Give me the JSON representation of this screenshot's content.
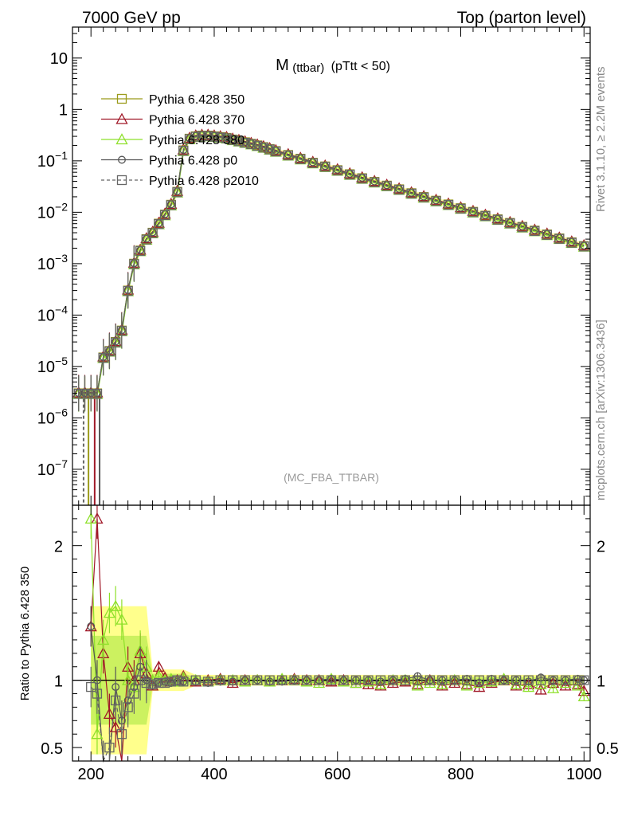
{
  "header": {
    "left": "7000 GeV pp",
    "right": "Top (parton level)"
  },
  "side_labels": {
    "rivet": "Rivet 3.1.10, ≥ 2.2M events",
    "mcplots": "mcplots.cern.ch [arXiv:1306.3436]"
  },
  "colors": {
    "p350": "#9a9a1a",
    "p370": "#a01828",
    "p380": "#8ee02a",
    "p0": "#555555",
    "p2010": "#666666",
    "band_yellow": "#ffff66",
    "band_green": "#8ee02a"
  },
  "chart_data": [
    {
      "type": "line",
      "title_main": "M",
      "title_sub": "(ttbar)",
      "title_cond": "(pTtt < 50)",
      "watermark": "(MC_FBA_TTBAR)",
      "yscale": "log",
      "xlim": [
        170,
        1010
      ],
      "ylim": [
        2e-08,
        40
      ],
      "y_ticks": [
        {
          "v": 1e-07,
          "t": "10",
          "e": "−7"
        },
        {
          "v": 1e-06,
          "t": "10",
          "e": "−6"
        },
        {
          "v": 1e-05,
          "t": "10",
          "e": "−5"
        },
        {
          "v": 0.0001,
          "t": "10",
          "e": "−4"
        },
        {
          "v": 0.001,
          "t": "10",
          "e": "−3"
        },
        {
          "v": 0.01,
          "t": "10",
          "e": "−2"
        },
        {
          "v": 0.1,
          "t": "10",
          "e": "−1"
        },
        {
          "v": 1,
          "t": "1",
          "e": ""
        },
        {
          "v": 10,
          "t": "10",
          "e": ""
        }
      ],
      "legend_position": "top-left",
      "series": [
        {
          "name": "Pythia 6.428 350",
          "marker": "square",
          "color_key": "p350",
          "dashed": false
        },
        {
          "name": "Pythia 6.428 370",
          "marker": "triangle",
          "color_key": "p370",
          "dashed": false
        },
        {
          "name": "Pythia 6.428 380",
          "marker": "triangle",
          "color_key": "p380",
          "dashed": false
        },
        {
          "name": "Pythia 6.428 p0",
          "marker": "circle",
          "color_key": "p0",
          "dashed": false
        },
        {
          "name": "Pythia 6.428 p2010",
          "marker": "square",
          "color_key": "p2010",
          "dashed": true
        }
      ],
      "reference": {
        "x": [
          180,
          190,
          200,
          210,
          220,
          230,
          240,
          250,
          260,
          270,
          280,
          290,
          300,
          310,
          320,
          330,
          340,
          350,
          360,
          370,
          380,
          390,
          400,
          410,
          420,
          430,
          440,
          450,
          460,
          470,
          480,
          490,
          500,
          520,
          540,
          560,
          580,
          600,
          620,
          640,
          660,
          680,
          700,
          720,
          740,
          760,
          780,
          800,
          820,
          840,
          860,
          880,
          900,
          920,
          940,
          960,
          980,
          1000
        ],
        "y": [
          3e-06,
          3e-06,
          3e-06,
          3e-06,
          1.5e-05,
          2e-05,
          3e-05,
          5e-05,
          0.0003,
          0.001,
          0.0018,
          0.003,
          0.004,
          0.006,
          0.009,
          0.014,
          0.025,
          0.16,
          0.27,
          0.3,
          0.31,
          0.31,
          0.3,
          0.29,
          0.28,
          0.26,
          0.245,
          0.23,
          0.215,
          0.2,
          0.185,
          0.17,
          0.155,
          0.13,
          0.11,
          0.092,
          0.078,
          0.066,
          0.055,
          0.046,
          0.039,
          0.033,
          0.028,
          0.0235,
          0.0198,
          0.0168,
          0.0142,
          0.012,
          0.0102,
          0.0086,
          0.0073,
          0.0062,
          0.0052,
          0.0044,
          0.0037,
          0.0031,
          0.0026,
          0.0022
        ]
      }
    },
    {
      "type": "line",
      "ylabel": "Ratio to Pythia 6.428 350",
      "xlim": [
        170,
        1010
      ],
      "ylim": [
        0.4,
        2.3
      ],
      "x_ticks": [
        200,
        400,
        600,
        800,
        1000
      ],
      "y_ticks": [
        0.5,
        1,
        2
      ],
      "x": [
        200,
        210,
        220,
        230,
        240,
        250,
        260,
        270,
        280,
        290,
        300,
        310,
        320,
        330,
        340,
        350,
        370,
        390,
        410,
        430,
        450,
        470,
        490,
        510,
        530,
        550,
        570,
        590,
        610,
        630,
        650,
        670,
        690,
        710,
        730,
        750,
        770,
        790,
        810,
        830,
        850,
        870,
        890,
        910,
        930,
        950,
        970,
        990,
        1000
      ],
      "series": [
        {
          "name": "Pythia 6.428 350",
          "values": [
            1,
            1,
            1,
            1,
            1,
            1,
            1,
            1,
            1,
            1,
            1,
            1,
            1,
            1,
            1,
            1,
            1,
            1,
            1,
            1,
            1,
            1,
            1,
            1,
            1,
            1,
            1,
            1,
            1,
            1,
            1,
            1,
            1,
            1,
            1,
            1,
            1,
            1,
            1,
            1,
            1,
            1,
            1,
            1,
            1,
            1,
            1,
            1,
            1
          ]
        },
        {
          "name": "Pythia 6.428 370",
          "values": [
            1.4,
            2.2,
            1.2,
            0.75,
            0.65,
            0.25,
            1.1,
            1.0,
            1.2,
            1.05,
            0.96,
            1.1,
            1.02,
            0.99,
            1.0,
            1.03,
            0.99,
            1.0,
            1.01,
            0.98,
            1.0,
            1.0,
            0.99,
            1.0,
            1.01,
            1.0,
            1.0,
            0.99,
            1.0,
            0.98,
            0.97,
            0.96,
            0.98,
            0.99,
            0.97,
            1.0,
            0.96,
            0.98,
            0.97,
            0.95,
            0.98,
            1.0,
            0.96,
            0.97,
            0.93,
            0.98,
            0.96,
            0.97,
            0.92
          ]
        },
        {
          "name": "Pythia 6.428 380",
          "values": [
            2.2,
            0.6,
            1.3,
            1.5,
            1.55,
            1.45,
            1.0,
            0.95,
            1.22,
            1.1,
            1.0,
            1.03,
            1.0,
            1.01,
            0.99,
            1.02,
            1.0,
            0.99,
            1.0,
            1.0,
            0.99,
            1.0,
            0.99,
            1.01,
            1.0,
            0.99,
            0.98,
            1.01,
            0.99,
            0.98,
            0.99,
            0.97,
            1.0,
            1.0,
            0.96,
            0.98,
            0.97,
            1.0,
            0.96,
            0.98,
            0.99,
            1.01,
            0.97,
            0.95,
            0.97,
            0.94,
            0.98,
            0.96,
            0.88
          ]
        },
        {
          "name": "Pythia 6.428 p0",
          "values": [
            1.4,
            1.0,
            0.3,
            0.35,
            0.95,
            0.7,
            0.85,
            0.95,
            1.1,
            1.0,
            0.96,
            0.98,
            0.99,
            0.98,
            0.99,
            0.99,
            0.99,
            0.98,
            0.99,
            0.99,
            1.0,
            1.0,
            0.99,
            0.99,
            1.0,
            1.0,
            1.0,
            1.01,
            1.0,
            1.0,
            1.0,
            0.99,
            1.0,
            1.01,
            1.03,
            1.0,
            1.0,
            1.0,
            1.01,
            0.98,
            1.01,
            1.0,
            1.0,
            0.99,
            1.02,
            1.0,
            1.0,
            1.01,
            1.0
          ]
        },
        {
          "name": "Pythia 6.428 p2010",
          "values": [
            0.95,
            0.9,
            0.3,
            0.5,
            0.85,
            0.6,
            0.8,
            0.9,
            1.0,
            0.98,
            0.97,
            0.98,
            0.98,
            0.99,
            1.0,
            0.99,
            1.0,
            0.99,
            1.0,
            1.0,
            1.0,
            1.0,
            1.0,
            1.0,
            1.0,
            1.0,
            1.0,
            1.0,
            1.0,
            1.0,
            1.0,
            1.0,
            1.0,
            1.0,
            1.0,
            1.0,
            1.0,
            1.0,
            1.0,
            1.0,
            1.0,
            1.0,
            1.0,
            1.0,
            1.0,
            1.0,
            1.0,
            1.0,
            1.0
          ]
        }
      ]
    }
  ]
}
